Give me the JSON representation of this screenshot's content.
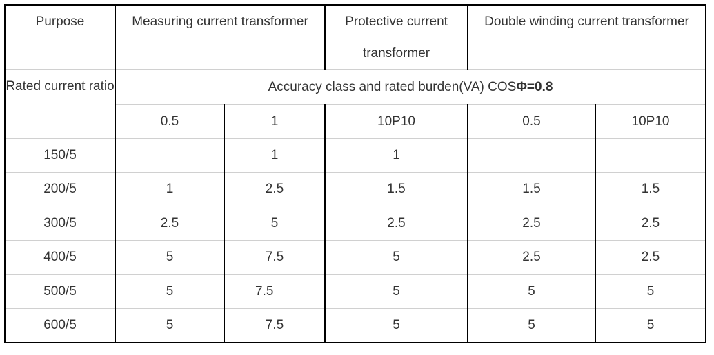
{
  "table": {
    "header": {
      "purpose": "Purpose",
      "measuring": "Measuring current transformer",
      "protective": "Protective current transformer",
      "double_winding": "Double winding current transformer"
    },
    "rated_current_ratio": "Rated current ratio",
    "accuracy_label": "Accuracy class and rated burden(VA) COS",
    "accuracy_bold": "Φ=0.8",
    "classes": [
      "0.5",
      "1",
      "10P10",
      "0.5",
      "10P10"
    ],
    "rows": [
      {
        "ratio": "150/5",
        "values": [
          "",
          "1",
          "1",
          "",
          ""
        ]
      },
      {
        "ratio": "200/5",
        "values": [
          "1",
          "2.5",
          "1.5",
          "1.5",
          "1.5"
        ]
      },
      {
        "ratio": "300/5",
        "values": [
          "2.5",
          "5",
          "2.5",
          "2.5",
          "2.5"
        ]
      },
      {
        "ratio": "400/5",
        "values": [
          "5",
          "7.5",
          "5",
          "2.5",
          "2.5"
        ]
      },
      {
        "ratio": "500/5",
        "values": [
          "5",
          "7.5",
          "5",
          "5",
          "5"
        ]
      },
      {
        "ratio": "600/5",
        "values": [
          "5",
          "7.5",
          "5",
          "5",
          "5"
        ]
      }
    ]
  }
}
